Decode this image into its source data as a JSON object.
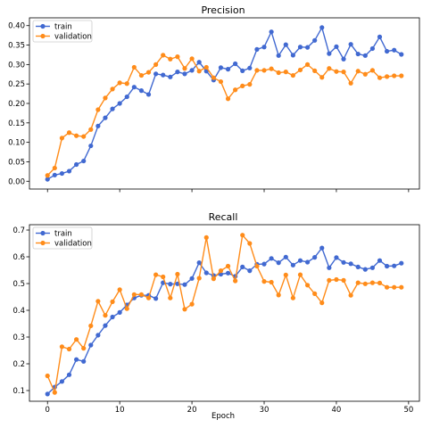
{
  "chart_data": [
    {
      "type": "line",
      "title": "Precision",
      "xlabel": "",
      "ylabel": "",
      "xlim": [
        -2.5,
        51.5
      ],
      "ylim": [
        -0.02,
        0.42
      ],
      "xticks": [
        "0",
        "10",
        "20",
        "30",
        "40",
        "50"
      ],
      "show_xtick_labels": false,
      "yticks": [
        "0.00",
        "0.05",
        "0.10",
        "0.15",
        "0.20",
        "0.25",
        "0.30",
        "0.35",
        "0.40"
      ],
      "grid": false,
      "legend": "upper-left",
      "series": [
        {
          "name": "train",
          "color": "#4169d1",
          "values": [
            0.005,
            0.016,
            0.02,
            0.026,
            0.043,
            0.052,
            0.091,
            0.142,
            0.163,
            0.186,
            0.2,
            0.217,
            0.242,
            0.233,
            0.223,
            0.276,
            0.273,
            0.268,
            0.281,
            0.276,
            0.285,
            0.306,
            0.283,
            0.26,
            0.292,
            0.288,
            0.302,
            0.284,
            0.291,
            0.339,
            0.345,
            0.384,
            0.323,
            0.351,
            0.324,
            0.345,
            0.344,
            0.362,
            0.395,
            0.328,
            0.346,
            0.314,
            0.352,
            0.327,
            0.323,
            0.341,
            0.371,
            0.334,
            0.337,
            0.326
          ]
        },
        {
          "name": "validation",
          "color": "#ff8c1a",
          "values": [
            0.015,
            0.034,
            0.111,
            0.125,
            0.117,
            0.115,
            0.133,
            0.184,
            0.214,
            0.237,
            0.253,
            0.251,
            0.293,
            0.272,
            0.28,
            0.3,
            0.324,
            0.314,
            0.32,
            0.29,
            0.315,
            0.283,
            0.293,
            0.266,
            0.256,
            0.212,
            0.235,
            0.245,
            0.249,
            0.285,
            0.285,
            0.289,
            0.279,
            0.281,
            0.272,
            0.286,
            0.3,
            0.284,
            0.267,
            0.29,
            0.282,
            0.281,
            0.252,
            0.283,
            0.275,
            0.285,
            0.266,
            0.269,
            0.271,
            0.271
          ]
        }
      ]
    },
    {
      "type": "line",
      "title": "Recall",
      "xlabel": "Epoch",
      "ylabel": "",
      "xlim": [
        -2.5,
        51.5
      ],
      "ylim": [
        0.06,
        0.72
      ],
      "xticks": [
        "0",
        "10",
        "20",
        "30",
        "40",
        "50"
      ],
      "show_xtick_labels": true,
      "yticks": [
        "0.1",
        "0.2",
        "0.3",
        "0.4",
        "0.5",
        "0.6",
        "0.7"
      ],
      "grid": false,
      "legend": "upper-left",
      "series": [
        {
          "name": "train",
          "color": "#4169d1",
          "values": [
            0.087,
            0.113,
            0.134,
            0.159,
            0.216,
            0.209,
            0.27,
            0.307,
            0.343,
            0.375,
            0.392,
            0.42,
            0.446,
            0.456,
            0.456,
            0.444,
            0.503,
            0.498,
            0.499,
            0.496,
            0.519,
            0.578,
            0.54,
            0.53,
            0.535,
            0.539,
            0.527,
            0.562,
            0.548,
            0.572,
            0.573,
            0.594,
            0.578,
            0.599,
            0.569,
            0.586,
            0.58,
            0.598,
            0.633,
            0.559,
            0.597,
            0.579,
            0.574,
            0.562,
            0.553,
            0.559,
            0.586,
            0.565,
            0.566,
            0.576
          ]
        },
        {
          "name": "validation",
          "color": "#ff8c1a",
          "values": [
            0.155,
            0.093,
            0.264,
            0.255,
            0.291,
            0.258,
            0.342,
            0.434,
            0.381,
            0.432,
            0.477,
            0.406,
            0.459,
            0.459,
            0.446,
            0.533,
            0.525,
            0.446,
            0.535,
            0.404,
            0.423,
            0.52,
            0.672,
            0.518,
            0.548,
            0.565,
            0.51,
            0.681,
            0.65,
            0.565,
            0.508,
            0.505,
            0.457,
            0.532,
            0.446,
            0.533,
            0.494,
            0.462,
            0.428,
            0.512,
            0.515,
            0.512,
            0.456,
            0.503,
            0.499,
            0.503,
            0.502,
            0.486,
            0.486,
            0.486
          ]
        }
      ]
    }
  ]
}
